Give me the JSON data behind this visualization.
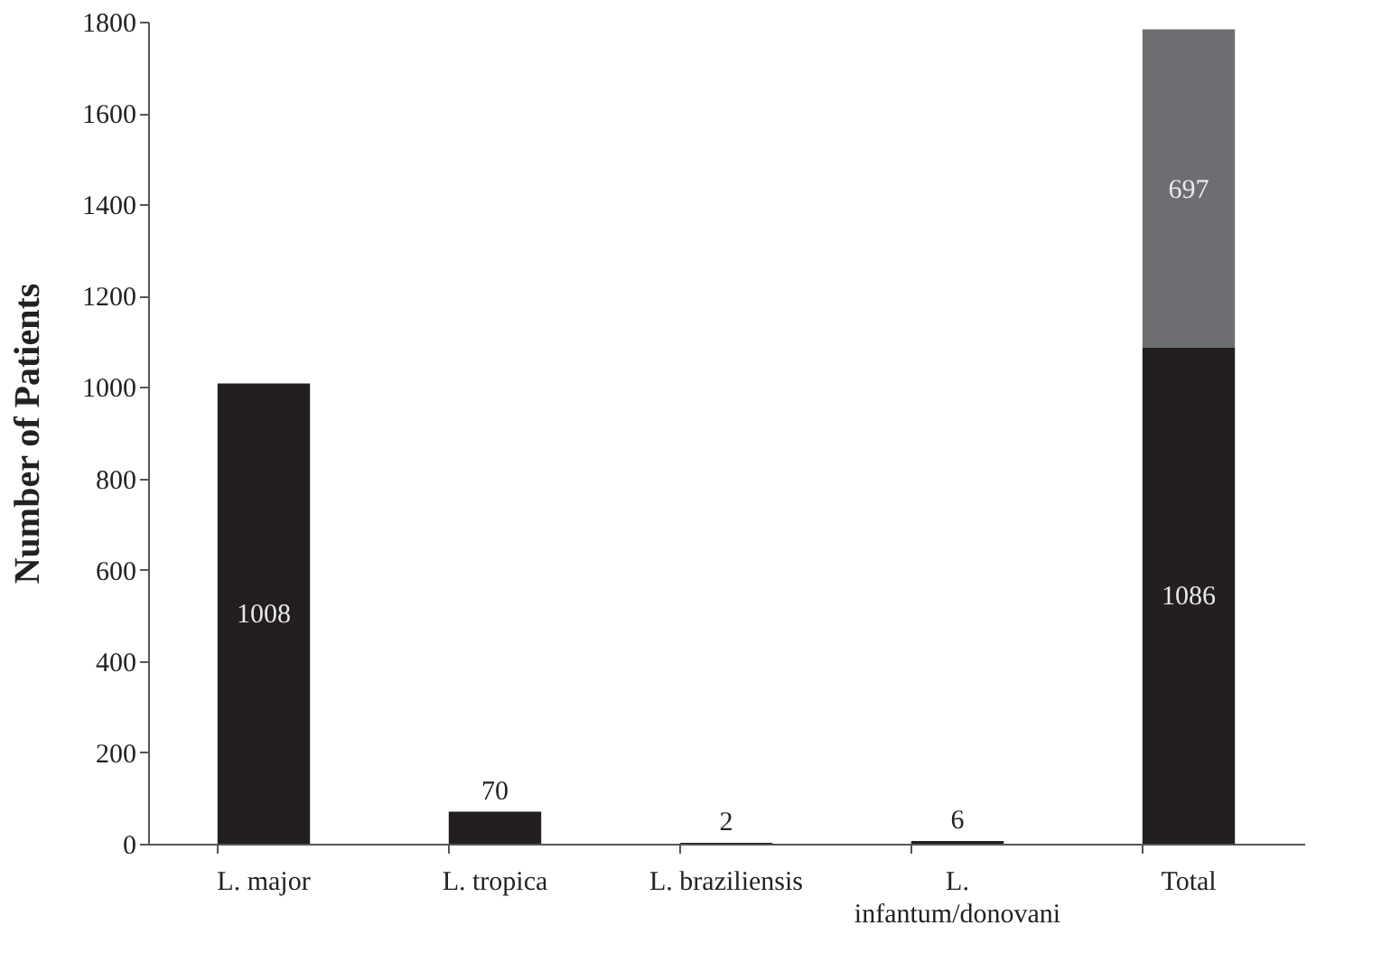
{
  "chart_data": {
    "type": "bar",
    "stacked": true,
    "ylabel": "Number of Patients",
    "categories": [
      "L. major",
      "L. tropica",
      "L. braziliensis",
      "L. infantum/donovani",
      "Total"
    ],
    "series": [
      {
        "color": "#231f20",
        "values": [
          1008,
          70,
          2,
          6,
          1086
        ]
      },
      {
        "color": "#6d6e71",
        "values": [
          null,
          null,
          null,
          null,
          697
        ]
      }
    ],
    "ylim": [
      0,
      1800
    ],
    "yticks": [
      0,
      200,
      400,
      600,
      800,
      1000,
      1200,
      1400,
      1600,
      1800
    ],
    "data_labels": true,
    "grid": false
  }
}
